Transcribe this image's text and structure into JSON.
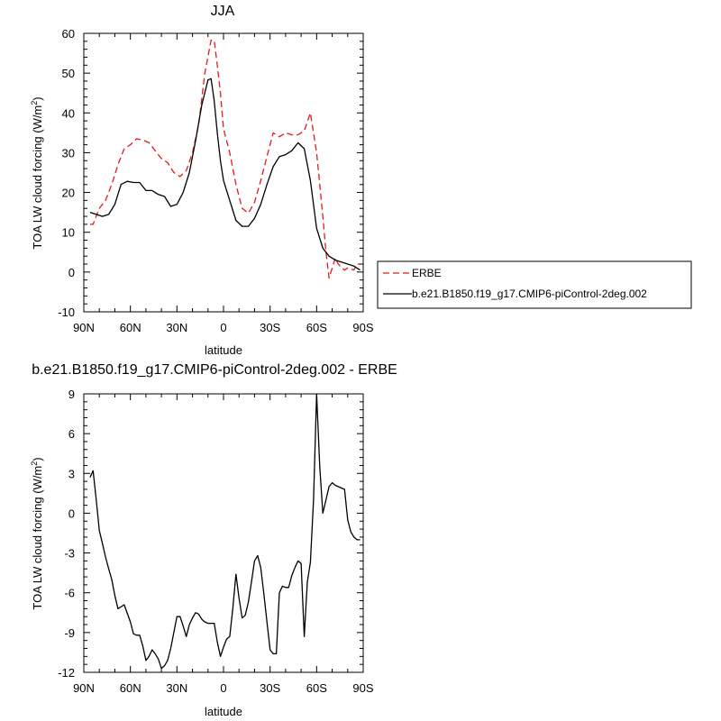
{
  "chart_data": [
    {
      "type": "line",
      "title": "JJA",
      "xlabel": "latitude",
      "ylabel": "TOA LW cloud forcing (W/m²)",
      "ylim": [
        -10,
        60
      ],
      "yticks": [
        -10,
        0,
        10,
        20,
        30,
        40,
        50,
        60
      ],
      "xlim": [
        90,
        -90
      ],
      "xtick_values": [
        90,
        60,
        30,
        0,
        -30,
        -60,
        -90
      ],
      "xtick_labels": [
        "90N",
        "60N",
        "30N",
        "0",
        "30S",
        "60S",
        "90S"
      ],
      "legend_position": "right",
      "series": [
        {
          "name": "ERBE",
          "color": "#e41a1c",
          "style": "dashed",
          "lat": [
            86,
            84,
            80,
            76,
            72,
            68,
            64,
            60,
            56,
            52,
            48,
            44,
            40,
            36,
            32,
            28,
            24,
            20,
            16,
            12,
            8,
            6,
            4,
            2,
            0,
            -4,
            -8,
            -12,
            -16,
            -20,
            -24,
            -28,
            -32,
            -36,
            -40,
            -44,
            -48,
            -52,
            -56,
            -60,
            -62,
            -64,
            -66,
            -68,
            -70,
            -72,
            -74,
            -76,
            -78,
            -80,
            -84,
            -86,
            -88
          ],
          "values": [
            12,
            12,
            16,
            18,
            22,
            27,
            31,
            32,
            33.5,
            33.2,
            32.5,
            30.5,
            28.5,
            27.5,
            25,
            24,
            25.5,
            30,
            37,
            50,
            58.3,
            58.2,
            52,
            45,
            36,
            30,
            22,
            16,
            14.8,
            17.5,
            23,
            29,
            35,
            34,
            35,
            34.5,
            34.5,
            35.5,
            40,
            30,
            22,
            14,
            5,
            -1.5,
            1,
            3.5,
            2,
            1,
            0.5,
            1,
            0.5,
            2,
            2
          ]
        },
        {
          "name": "b.e21.B1850.f19_g17.CMIP6-piControl-2deg.002",
          "color": "#000000",
          "style": "solid",
          "lat": [
            86,
            82,
            78,
            74,
            70,
            66,
            62,
            58,
            54,
            50,
            46,
            42,
            38,
            34,
            30,
            26,
            22,
            18,
            14,
            10,
            8,
            6,
            4,
            2,
            0,
            -4,
            -8,
            -12,
            -16,
            -20,
            -24,
            -28,
            -32,
            -36,
            -40,
            -44,
            -48,
            -52,
            -56,
            -60,
            -64,
            -68,
            -72,
            -76,
            -80,
            -84,
            -86,
            -88
          ],
          "values": [
            15,
            14.5,
            14,
            14.5,
            17,
            22,
            22.8,
            22.5,
            22.5,
            20.5,
            20.5,
            19.5,
            19,
            16.5,
            17,
            20,
            25,
            33,
            42,
            48.3,
            48.6,
            43,
            35,
            28,
            23,
            18,
            13,
            11.5,
            11.5,
            13.5,
            17,
            22,
            26.5,
            29,
            29.5,
            30.5,
            32.5,
            31,
            23,
            11,
            6,
            4,
            3,
            2.5,
            2,
            1.5,
            1,
            0.5
          ]
        }
      ]
    },
    {
      "type": "line",
      "title": "b.e21.B1850.f19_g17.CMIP6-piControl-2deg.002 - ERBE",
      "xlabel": "latitude",
      "ylabel": "TOA LW cloud forcing (W/m²)",
      "ylim": [
        -12,
        9
      ],
      "yticks": [
        -12,
        -9,
        -6,
        -3,
        0,
        3,
        6,
        9
      ],
      "xlim": [
        90,
        -90
      ],
      "xtick_values": [
        90,
        60,
        30,
        0,
        -30,
        -60,
        -90
      ],
      "xtick_labels": [
        "90N",
        "60N",
        "30N",
        "0",
        "30S",
        "60S",
        "90S"
      ],
      "series": [
        {
          "name": "",
          "color": "#000000",
          "style": "solid",
          "lat": [
            86,
            84,
            82,
            80,
            78,
            76,
            74,
            72,
            70,
            68,
            64,
            60,
            58,
            56,
            54,
            52,
            50,
            48,
            46,
            44,
            42,
            40,
            38,
            36,
            34,
            30,
            28,
            26,
            24,
            22,
            20,
            18,
            16,
            14,
            12,
            10,
            8,
            6,
            4,
            2,
            0,
            -2,
            -4,
            -6,
            -8,
            -10,
            -12,
            -14,
            -16,
            -18,
            -20,
            -22,
            -24,
            -26,
            -28,
            -30,
            -32,
            -34,
            -36,
            -38,
            -40,
            -42,
            -44,
            -46,
            -48,
            -50,
            -52,
            -54,
            -56,
            -58,
            -60,
            -62,
            -64,
            -66,
            -68,
            -70,
            -72,
            -74,
            -76,
            -78,
            -80,
            -82,
            -84,
            -86,
            -88
          ],
          "values": [
            2.7,
            3.2,
            1.0,
            -1.3,
            -2.3,
            -3.3,
            -4.2,
            -5.0,
            -6.2,
            -7.2,
            -6.9,
            -8.2,
            -9.1,
            -9.2,
            -9.2,
            -10.0,
            -11.1,
            -10.8,
            -10.3,
            -10.6,
            -11.0,
            -11.7,
            -11.5,
            -11.1,
            -10.2,
            -7.8,
            -7.8,
            -8.5,
            -9.3,
            -8.4,
            -7.9,
            -7.5,
            -7.6,
            -8.0,
            -8.2,
            -8.3,
            -8.3,
            -8.3,
            -9.7,
            -10.8,
            -10.1,
            -9.5,
            -9.3,
            -7.2,
            -4.6,
            -6.4,
            -7.9,
            -7.7,
            -6.7,
            -5.2,
            -3.6,
            -3.2,
            -4.1,
            -6.1,
            -8.2,
            -10.3,
            -10.6,
            -10.6,
            -6.0,
            -5.5,
            -5.6,
            -5.6,
            -4.7,
            -4.1,
            -3.6,
            -3.8,
            -9.3,
            -5.2,
            -3.7,
            1.0,
            9.0,
            3.5,
            0.0,
            1.0,
            2.0,
            2.3,
            2.1,
            2.0,
            1.9,
            1.8,
            -0.5,
            -1.4,
            -1.8,
            -2.0,
            -2.0
          ]
        }
      ]
    }
  ]
}
